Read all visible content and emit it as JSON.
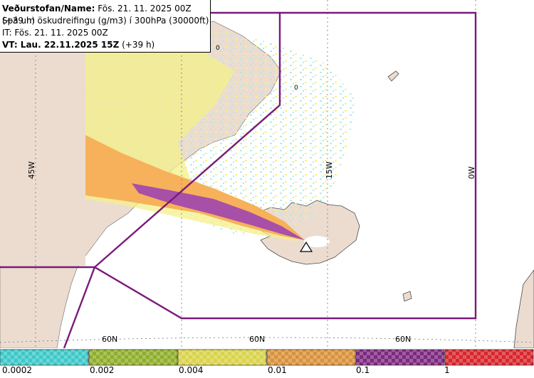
{
  "header": {
    "line1_label": "Veðurstofan/Name:",
    "line1_value": " Fös. 21. 11. 2025 00Z (+39 h)",
    "line2": "Spá um öskudreifingu (g/m3) í 300hPa (30000ft)",
    "line3": "IT: Fös. 21. 11. 2025 00Z",
    "line4_label": "VT: Lau. 22.11.2025 15Z",
    "line4_value": " (+39 h)"
  },
  "map": {
    "lon_labels": [
      "45W",
      "15W",
      "0W"
    ],
    "lat_labels": [
      "60N",
      "60N",
      "60N"
    ],
    "contour_labels": [
      "0",
      "0"
    ],
    "colors": {
      "land": "#ecdcd0",
      "sea": "#ffffff",
      "boundary": "#7a1a7a",
      "plume_orange": "#f7b15a",
      "plume_purple": "#a84fa8",
      "plume_yellow": "#f4f08a",
      "plume_cyan": "#a9ecec"
    },
    "volcano_icon": "volcano-triangle-icon"
  },
  "legend": {
    "colors": [
      "#3cc8c8",
      "#8fae2a",
      "#d9d34a",
      "#d9913a",
      "#7d2a80",
      "#d8262c"
    ],
    "labels": [
      "0.0002",
      "0.002",
      "0.004",
      "0.01",
      "0.1",
      "1"
    ]
  }
}
